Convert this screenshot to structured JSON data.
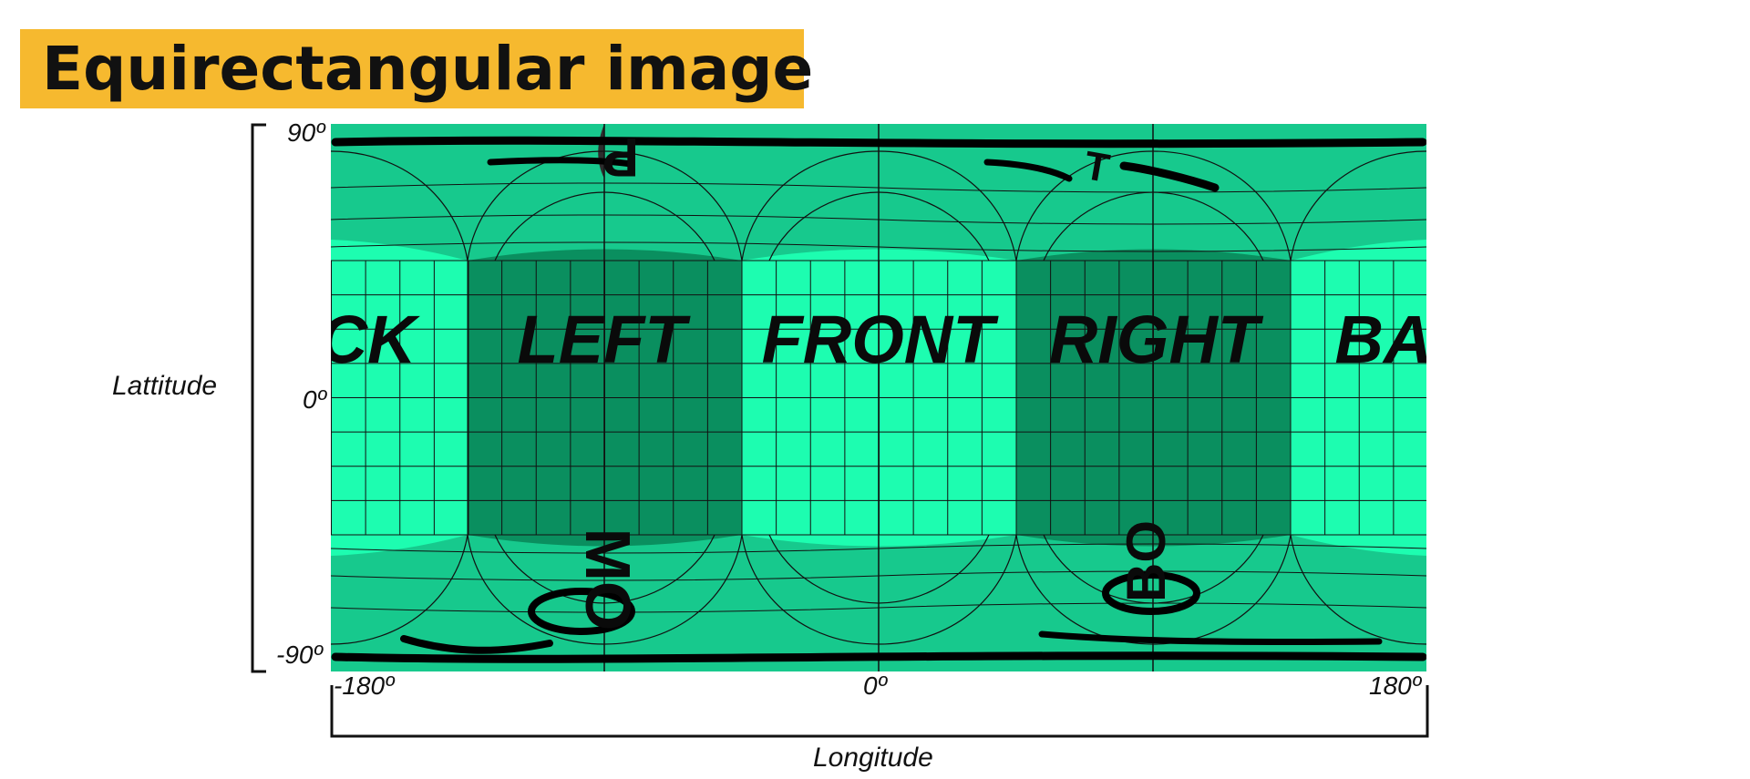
{
  "title": "Equirectangular image",
  "latitude": {
    "title": "Lattitude",
    "ticks": [
      "90º",
      "0º",
      "-90º"
    ]
  },
  "longitude": {
    "title": "Longitude",
    "ticks": [
      "-180º",
      "0º",
      "180º"
    ]
  },
  "faces": [
    "CK",
    "LEFT",
    "FRONT",
    "RIGHT",
    "BA"
  ],
  "distorted_labels": {
    "top": [
      "P",
      "T"
    ],
    "bottom": [
      "MO",
      "BO"
    ]
  },
  "colors": {
    "title_bg": "#f6b92f",
    "face_bright": "#1dfdb0",
    "face_dark": "#0a8f5f",
    "poles": "#17c98d",
    "frame": "#2d2d2d",
    "grid": "#111111"
  }
}
